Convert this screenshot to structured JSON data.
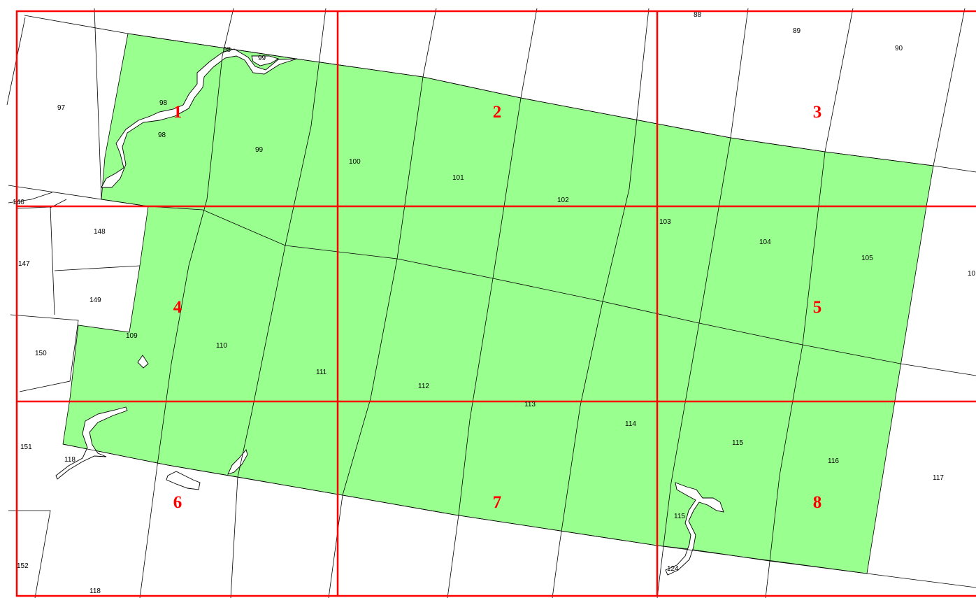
{
  "colors": {
    "area_fill": "#99ff8f",
    "grid": "#ff0000",
    "parcel_line": "#000000",
    "sheet_label": "#ff0000",
    "background": "#ffffff"
  },
  "map": {
    "sheets": [
      "1",
      "2",
      "3",
      "4",
      "5",
      "6",
      "7",
      "8"
    ],
    "parcels": [
      "88",
      "89",
      "90",
      "97",
      "98",
      "99",
      "98",
      "98",
      "99",
      "100",
      "101",
      "102",
      "146",
      "148",
      "147",
      "149",
      "103",
      "104",
      "105",
      "10",
      "150",
      "109",
      "110",
      "111",
      "112",
      "113",
      "114",
      "151",
      "118",
      "115",
      "116",
      "117",
      "115",
      "152",
      "118",
      "124"
    ]
  }
}
